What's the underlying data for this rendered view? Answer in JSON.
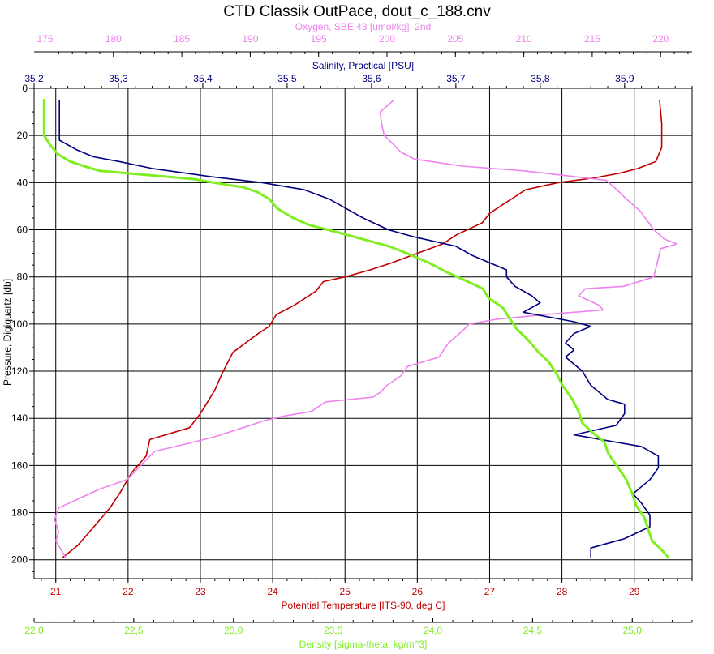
{
  "chart_data": {
    "type": "line",
    "title": "CTD Classik OutPace, dout_c_188.cnv",
    "y_axis": {
      "label": "Pressure, Digiquartz [db]",
      "range": [
        0,
        208
      ],
      "ticks": [
        0,
        20,
        40,
        60,
        80,
        100,
        120,
        140,
        160,
        180,
        200
      ],
      "inverted": true
    },
    "x_axes": [
      {
        "key": "oxygen",
        "label": "Oxygen, SBE 43 [umol/kg], 2nd",
        "position": "top-1",
        "range": [
          174.2,
          222.3
        ],
        "ticks": [
          175,
          180,
          185,
          190,
          195,
          200,
          205,
          210,
          215,
          220
        ],
        "tick_labels": [
          "175",
          "180",
          "185",
          "190",
          "195",
          "200",
          "205",
          "210",
          "215",
          "220"
        ],
        "color": "#ee82ee"
      },
      {
        "key": "salinity",
        "label": "Salinity, Practical [PSU]",
        "position": "top-2",
        "range": [
          35.2,
          35.98
        ],
        "ticks": [
          35.2,
          35.3,
          35.4,
          35.5,
          35.6,
          35.7,
          35.8,
          35.9
        ],
        "tick_labels": [
          "35,2",
          "35,3",
          "35,4",
          "35,5",
          "35,6",
          "35,7",
          "35,8",
          "35,9"
        ],
        "color": "#000080"
      },
      {
        "key": "temperature",
        "label": "Potential Temperature [ITS-90, deg C]",
        "position": "bottom-1",
        "range": [
          20.7,
          29.8
        ],
        "ticks": [
          21,
          22,
          23,
          24,
          25,
          26,
          27,
          28,
          29
        ],
        "tick_labels": [
          "21",
          "22",
          "23",
          "24",
          "25",
          "26",
          "27",
          "28",
          "29"
        ],
        "color": "#c00000"
      },
      {
        "key": "density",
        "label": "Density [sigma-theta, kg/m^3]",
        "position": "bottom-2",
        "range": [
          22.0,
          25.3
        ],
        "ticks": [
          22.0,
          22.5,
          23.0,
          23.5,
          24.0,
          24.5,
          25.0
        ],
        "tick_labels": [
          "22,0",
          "22,5",
          "23,0",
          "23,5",
          "24,0",
          "24,5",
          "25,0"
        ],
        "color": "#80ee20"
      }
    ],
    "grid": true,
    "series": [
      {
        "key": "temperature",
        "color": "#c00000",
        "points": [
          [
            29.35,
            5
          ],
          [
            29.38,
            15
          ],
          [
            29.38,
            25
          ],
          [
            29.3,
            31
          ],
          [
            29.05,
            34
          ],
          [
            28.8,
            36
          ],
          [
            28.45,
            38
          ],
          [
            27.95,
            40
          ],
          [
            27.5,
            43
          ],
          [
            27.25,
            48
          ],
          [
            27.0,
            53
          ],
          [
            26.9,
            57
          ],
          [
            26.55,
            62
          ],
          [
            26.35,
            66
          ],
          [
            26.0,
            70
          ],
          [
            25.65,
            74
          ],
          [
            25.35,
            77
          ],
          [
            25.0,
            80
          ],
          [
            24.7,
            82
          ],
          [
            24.6,
            86
          ],
          [
            24.3,
            92
          ],
          [
            24.05,
            96
          ],
          [
            23.95,
            101
          ],
          [
            23.8,
            104
          ],
          [
            23.45,
            112
          ],
          [
            23.3,
            121
          ],
          [
            23.2,
            128
          ],
          [
            23.0,
            138
          ],
          [
            22.85,
            144
          ],
          [
            22.3,
            149
          ],
          [
            22.25,
            156
          ],
          [
            22.05,
            163
          ],
          [
            21.9,
            171
          ],
          [
            21.75,
            178
          ],
          [
            21.5,
            187
          ],
          [
            21.3,
            194
          ],
          [
            21.1,
            199
          ]
        ]
      },
      {
        "key": "oxygen",
        "color": "#ee82ee",
        "points": [
          [
            200.5,
            5
          ],
          [
            199.5,
            10
          ],
          [
            199.6,
            15
          ],
          [
            199.8,
            20
          ],
          [
            200.5,
            24
          ],
          [
            201.0,
            27
          ],
          [
            202.0,
            30
          ],
          [
            205.5,
            33
          ],
          [
            210.0,
            35
          ],
          [
            213.0,
            37
          ],
          [
            216.0,
            39
          ],
          [
            216.8,
            43
          ],
          [
            217.5,
            47
          ],
          [
            218.5,
            52
          ],
          [
            219.0,
            56
          ],
          [
            219.5,
            60
          ],
          [
            220.3,
            64
          ],
          [
            221.2,
            66
          ],
          [
            220.0,
            68
          ],
          [
            219.8,
            73
          ],
          [
            219.5,
            80
          ],
          [
            217.3,
            84
          ],
          [
            214.5,
            85
          ],
          [
            214.0,
            88
          ],
          [
            215.5,
            92
          ],
          [
            215.8,
            94
          ],
          [
            211.5,
            96
          ],
          [
            208.0,
            98
          ],
          [
            206.0,
            100
          ],
          [
            205.5,
            103
          ],
          [
            204.5,
            108
          ],
          [
            203.8,
            114
          ],
          [
            201.5,
            118
          ],
          [
            201.0,
            122
          ],
          [
            200.0,
            126
          ],
          [
            199.5,
            129
          ],
          [
            199.0,
            131
          ],
          [
            195.5,
            133
          ],
          [
            194.5,
            137
          ],
          [
            192.5,
            139
          ],
          [
            191.0,
            141
          ],
          [
            190.0,
            143
          ],
          [
            187.3,
            148
          ],
          [
            184.5,
            152
          ],
          [
            183.0,
            154
          ],
          [
            182.0,
            160
          ],
          [
            181.0,
            166
          ],
          [
            179.0,
            170
          ],
          [
            177.5,
            174
          ],
          [
            176.0,
            178
          ],
          [
            175.7,
            183
          ],
          [
            176.0,
            188
          ],
          [
            175.8,
            192
          ],
          [
            176.2,
            196
          ],
          [
            176.5,
            199
          ]
        ]
      },
      {
        "key": "salinity",
        "color": "#000080",
        "points": [
          [
            35.23,
            5
          ],
          [
            35.23,
            15
          ],
          [
            35.23,
            22
          ],
          [
            35.25,
            26
          ],
          [
            35.27,
            29
          ],
          [
            35.3,
            31
          ],
          [
            35.34,
            34
          ],
          [
            35.38,
            36
          ],
          [
            35.41,
            37.5
          ],
          [
            35.47,
            40
          ],
          [
            35.52,
            43
          ],
          [
            35.55,
            47
          ],
          [
            35.57,
            51
          ],
          [
            35.59,
            55
          ],
          [
            35.62,
            60
          ],
          [
            35.65,
            63
          ],
          [
            35.7,
            67
          ],
          [
            35.72,
            71
          ],
          [
            35.74,
            74
          ],
          [
            35.76,
            77
          ],
          [
            35.76,
            80
          ],
          [
            35.77,
            84
          ],
          [
            35.79,
            88
          ],
          [
            35.8,
            91
          ],
          [
            35.78,
            95
          ],
          [
            35.84,
            99
          ],
          [
            35.86,
            101
          ],
          [
            35.84,
            104
          ],
          [
            35.83,
            108
          ],
          [
            35.84,
            111
          ],
          [
            35.83,
            114
          ],
          [
            35.85,
            120
          ],
          [
            35.86,
            126
          ],
          [
            35.88,
            132
          ],
          [
            35.9,
            134
          ],
          [
            35.9,
            138
          ],
          [
            35.89,
            143
          ],
          [
            35.84,
            147
          ],
          [
            35.92,
            152
          ],
          [
            35.94,
            156
          ],
          [
            35.94,
            161
          ],
          [
            35.93,
            166
          ],
          [
            35.91,
            172
          ],
          [
            35.92,
            176
          ],
          [
            35.93,
            181
          ],
          [
            35.93,
            186
          ],
          [
            35.9,
            191
          ],
          [
            35.86,
            195
          ],
          [
            35.86,
            199
          ]
        ]
      },
      {
        "key": "density",
        "color": "#80ee20",
        "points": [
          [
            22.05,
            5
          ],
          [
            22.05,
            20
          ],
          [
            22.08,
            24
          ],
          [
            22.12,
            28
          ],
          [
            22.18,
            31
          ],
          [
            22.25,
            33
          ],
          [
            22.33,
            35
          ],
          [
            22.6,
            37
          ],
          [
            22.8,
            38.5
          ],
          [
            22.9,
            40
          ],
          [
            23.05,
            42
          ],
          [
            23.12,
            44
          ],
          [
            23.18,
            47
          ],
          [
            23.22,
            51
          ],
          [
            23.3,
            55
          ],
          [
            23.38,
            58
          ],
          [
            23.52,
            61
          ],
          [
            23.65,
            64
          ],
          [
            23.78,
            67
          ],
          [
            23.87,
            70
          ],
          [
            23.98,
            74
          ],
          [
            24.07,
            78
          ],
          [
            24.15,
            81
          ],
          [
            24.25,
            85
          ],
          [
            24.28,
            89
          ],
          [
            24.35,
            93
          ],
          [
            24.38,
            97
          ],
          [
            24.42,
            102
          ],
          [
            24.48,
            107
          ],
          [
            24.53,
            112
          ],
          [
            24.58,
            116
          ],
          [
            24.62,
            121
          ],
          [
            24.65,
            126
          ],
          [
            24.7,
            132
          ],
          [
            24.73,
            137
          ],
          [
            24.75,
            142
          ],
          [
            24.8,
            146
          ],
          [
            24.86,
            150
          ],
          [
            24.88,
            155
          ],
          [
            24.93,
            161
          ],
          [
            24.97,
            166
          ],
          [
            25.0,
            172
          ],
          [
            25.02,
            177
          ],
          [
            25.06,
            182
          ],
          [
            25.08,
            187
          ],
          [
            25.1,
            192
          ],
          [
            25.15,
            196
          ],
          [
            25.18,
            199
          ]
        ]
      }
    ]
  }
}
